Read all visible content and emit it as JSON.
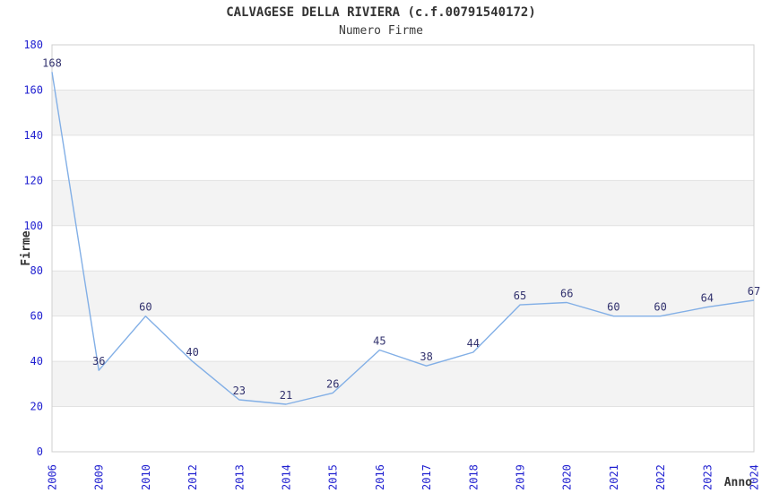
{
  "chart_data": {
    "type": "line",
    "title": "CALVAGESE DELLA RIVIERA (c.f.00791540172)",
    "subtitle": "Numero Firme",
    "xlabel": "Anno",
    "ylabel": "Firme",
    "categories": [
      "2006",
      "2009",
      "2010",
      "2012",
      "2013",
      "2014",
      "2015",
      "2016",
      "2017",
      "2018",
      "2019",
      "2020",
      "2021",
      "2022",
      "2023",
      "2024"
    ],
    "values": [
      168,
      36,
      60,
      40,
      23,
      21,
      26,
      45,
      38,
      44,
      65,
      66,
      60,
      60,
      64,
      67
    ],
    "ylim": [
      0,
      180
    ],
    "ytick_step": 20,
    "grid": "horizontal-bands-alternating",
    "legend": "none",
    "data_labels_shown": true,
    "colors": {
      "line": "#82AFE6",
      "tick_labels": "#1F1FD0",
      "data_labels": "#32326E",
      "band": "#F3F3F3",
      "gridline": "#E2E2E2",
      "border": "#CFCFCF",
      "text": "#333333",
      "background": "#FFFFFF"
    }
  }
}
